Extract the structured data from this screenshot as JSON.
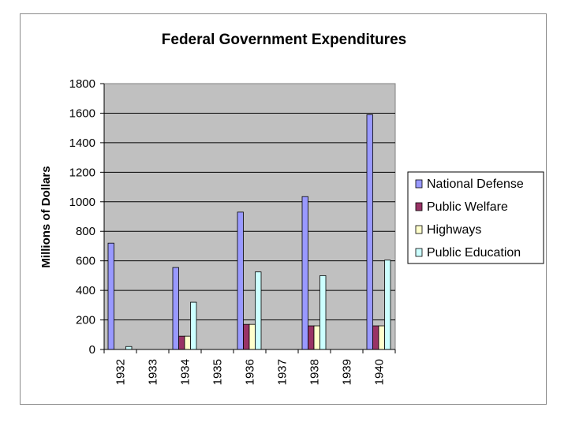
{
  "chart_data": {
    "type": "bar",
    "title": "Federal Government Expenditures",
    "xlabel": "",
    "ylabel": "Millions of Dollars",
    "ylim": [
      0,
      1800
    ],
    "yticks": [
      0,
      200,
      400,
      600,
      800,
      1000,
      1200,
      1400,
      1600,
      1800
    ],
    "grid": true,
    "legend_position": "right",
    "categories": [
      "1932",
      "1933",
      "1934",
      "1935",
      "1936",
      "1937",
      "1938",
      "1939",
      "1940"
    ],
    "series": [
      {
        "name": "National Defense",
        "color": "#9999FF",
        "values": [
          720,
          null,
          555,
          null,
          930,
          null,
          1035,
          null,
          1590
        ]
      },
      {
        "name": "Public Welfare",
        "color": "#993366",
        "values": [
          null,
          null,
          90,
          null,
          170,
          null,
          160,
          null,
          160
        ]
      },
      {
        "name": "Highways",
        "color": "#FFFFCC",
        "values": [
          null,
          null,
          90,
          null,
          170,
          null,
          160,
          null,
          160
        ]
      },
      {
        "name": "Public Education",
        "color": "#CCFFFF",
        "values": [
          20,
          null,
          320,
          null,
          525,
          null,
          500,
          null,
          605
        ]
      }
    ],
    "plot_background": "#C0C0C0"
  }
}
